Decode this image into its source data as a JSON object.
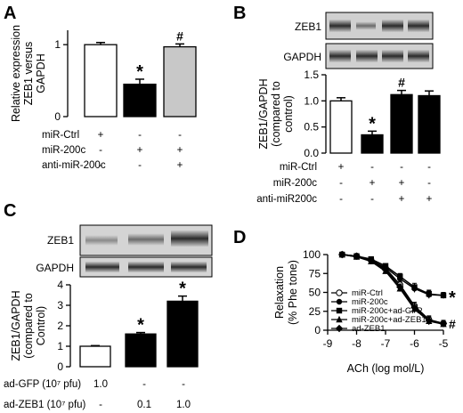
{
  "chart_data": [
    {
      "panel": "A",
      "type": "bar",
      "ylabel": [
        "Relative expression",
        "ZEB1 versus",
        "GAPDH"
      ],
      "ylim": [
        0,
        1.2
      ],
      "yticks": [
        "0",
        "1"
      ],
      "conditions": [
        {
          "label": "miR-Ctrl",
          "marks": [
            "+",
            "-",
            "-"
          ]
        },
        {
          "label": "miR-200c",
          "marks": [
            "-",
            "+",
            "+"
          ]
        },
        {
          "label": "anti-miR-200c",
          "marks": [
            "-",
            "-",
            "+"
          ]
        }
      ],
      "values": [
        1.0,
        0.45,
        0.97
      ],
      "errors": [
        0.03,
        0.07,
        0.04
      ],
      "colors": [
        "#ffffff",
        "#000000",
        "#c8c8c8"
      ],
      "significance": [
        "",
        "*",
        "#"
      ]
    },
    {
      "panel": "B",
      "type": "bar",
      "blots": [
        "ZEB1",
        "GAPDH"
      ],
      "ylabel": [
        "ZEB1/GAPDH",
        "(compared to",
        "control)"
      ],
      "ylim": [
        0,
        1.5
      ],
      "yticks": [
        "0.0",
        "0.5",
        "1.0",
        "1.5"
      ],
      "conditions": [
        {
          "label": "miR-Ctrl",
          "marks": [
            "+",
            "-",
            "-",
            "-"
          ]
        },
        {
          "label": "miR-200c",
          "marks": [
            "-",
            "+",
            "+",
            "-"
          ]
        },
        {
          "label": "anti-miR200c",
          "marks": [
            "-",
            "-",
            "+",
            "+"
          ]
        }
      ],
      "values": [
        1.0,
        0.35,
        1.12,
        1.1
      ],
      "errors": [
        0.06,
        0.07,
        0.08,
        0.09
      ],
      "colors": [
        "#ffffff",
        "#000000",
        "#000000",
        "#000000"
      ],
      "significance": [
        "",
        "*",
        "#",
        ""
      ]
    },
    {
      "panel": "C",
      "type": "bar",
      "blots": [
        "ZEB1",
        "GAPDH"
      ],
      "ylabel": [
        "ZEB1/GAPDH",
        "(compared to",
        "Control)"
      ],
      "ylim": [
        0,
        4
      ],
      "yticks": [
        "0",
        "1",
        "2",
        "3",
        "4"
      ],
      "conditions": [
        {
          "label": "ad-GFP (10⁷ pfu)",
          "marks": [
            "1.0",
            "-",
            "-"
          ]
        },
        {
          "label": "ad-ZEB1 (10⁷ pfu)",
          "marks": [
            "-",
            "0.1",
            "1.0"
          ]
        }
      ],
      "values": [
        1.0,
        1.6,
        3.2
      ],
      "errors": [
        0.03,
        0.07,
        0.25
      ],
      "colors": [
        "#ffffff",
        "#000000",
        "#000000"
      ],
      "significance": [
        "",
        "*",
        "*"
      ]
    },
    {
      "panel": "D",
      "type": "line",
      "ylabel": [
        "Relaxation",
        "(% Phe tone)"
      ],
      "xlabel": "ACh (log mol/L)",
      "xlim": [
        -9,
        -5
      ],
      "ylim": [
        0,
        100
      ],
      "xticks": [
        "-9",
        "-8",
        "-7",
        "-6",
        "-5"
      ],
      "yticks": [
        "0",
        "25",
        "50",
        "75",
        "100"
      ],
      "x": [
        -8.5,
        -8,
        -7.5,
        -7,
        -6.5,
        -6,
        -5.5,
        -5
      ],
      "series": [
        {
          "name": "miR-Ctrl",
          "marker": "open-circle",
          "values": [
            100,
            98,
            93,
            82,
            60,
            32,
            14,
            9
          ]
        },
        {
          "name": "miR-200c",
          "marker": "filled-circle",
          "values": [
            100,
            97,
            92,
            83,
            68,
            55,
            47,
            46
          ]
        },
        {
          "name": "miR-200c+ad-GFP",
          "marker": "filled-square",
          "values": [
            100,
            98,
            94,
            85,
            71,
            57,
            48,
            46
          ]
        },
        {
          "name": "miR-200c+ad-ZEB1",
          "marker": "filled-triangle",
          "values": [
            100,
            97,
            91,
            78,
            55,
            28,
            12,
            8
          ]
        },
        {
          "name": "ad-ZEB1",
          "marker": "filled-diamond",
          "values": [
            100,
            98,
            92,
            80,
            57,
            30,
            13,
            9
          ]
        }
      ],
      "errors": [
        0,
        1,
        2,
        3,
        4,
        5,
        5,
        4
      ],
      "significance": [
        {
          "series": 1,
          "mark": "*"
        },
        {
          "series": 3,
          "mark": "#"
        }
      ]
    }
  ]
}
